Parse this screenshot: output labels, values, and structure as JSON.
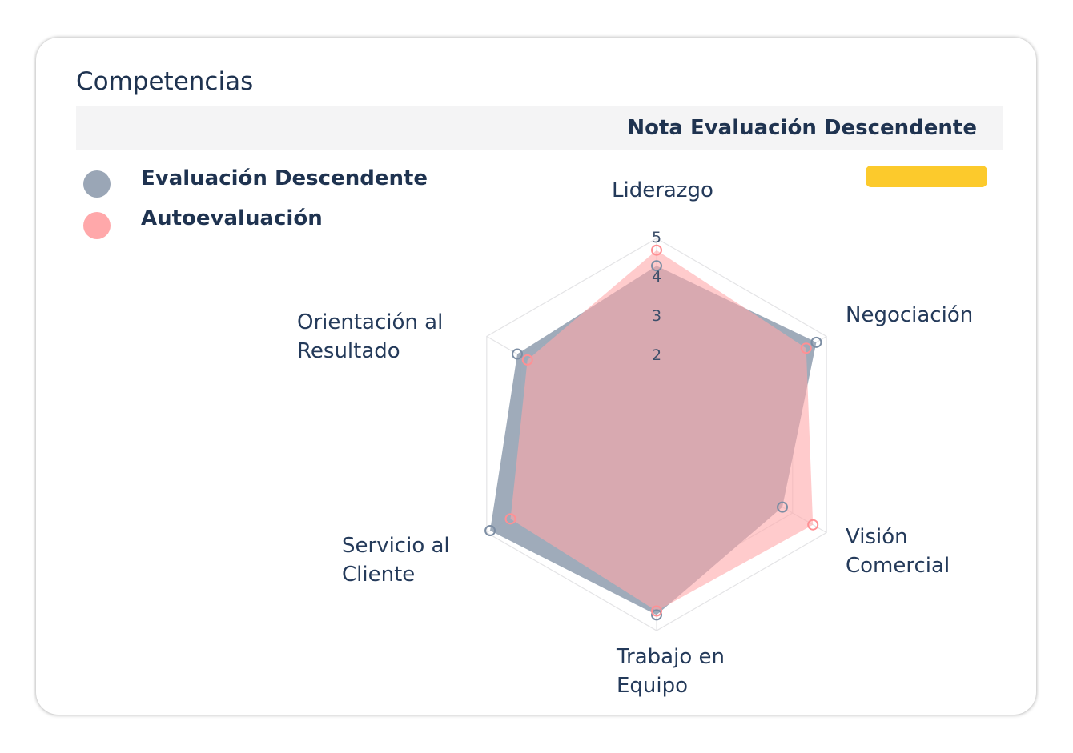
{
  "card": {
    "title": "Competencias",
    "header_label": "Nota Evaluación Descendente"
  },
  "colors": {
    "accent_bar": "#fcca2c",
    "series_evaluacion": "#9aa6b6",
    "series_auto": "#ffa8aa"
  },
  "chart_data": {
    "type": "radar",
    "categories": [
      "Liderazgo",
      "Negociación",
      "Visión Comercial",
      "Trabajo en Equipo",
      "Servicio al Cliente",
      "Orientación al Resultado"
    ],
    "category_lines": [
      [
        "Liderazgo"
      ],
      [
        "Negociación"
      ],
      [
        "Visión",
        "Comercial"
      ],
      [
        "Trabajo en",
        "Equipo"
      ],
      [
        "Servicio al",
        "Cliente"
      ],
      [
        "Orientación al",
        "Resultado"
      ]
    ],
    "ticks": [
      "2",
      "3",
      "4",
      "5"
    ],
    "rmax": 5,
    "series": [
      {
        "name": "Evaluación Descendente",
        "values": [
          4.3,
          4.7,
          3.7,
          4.6,
          4.9,
          4.1
        ],
        "color": "#7d8ea4"
      },
      {
        "name": "Autoevaluación",
        "values": [
          4.7,
          4.4,
          4.6,
          4.5,
          4.3,
          3.8
        ],
        "color": "#ff9094"
      }
    ],
    "legend": "top-left",
    "grid": true
  }
}
